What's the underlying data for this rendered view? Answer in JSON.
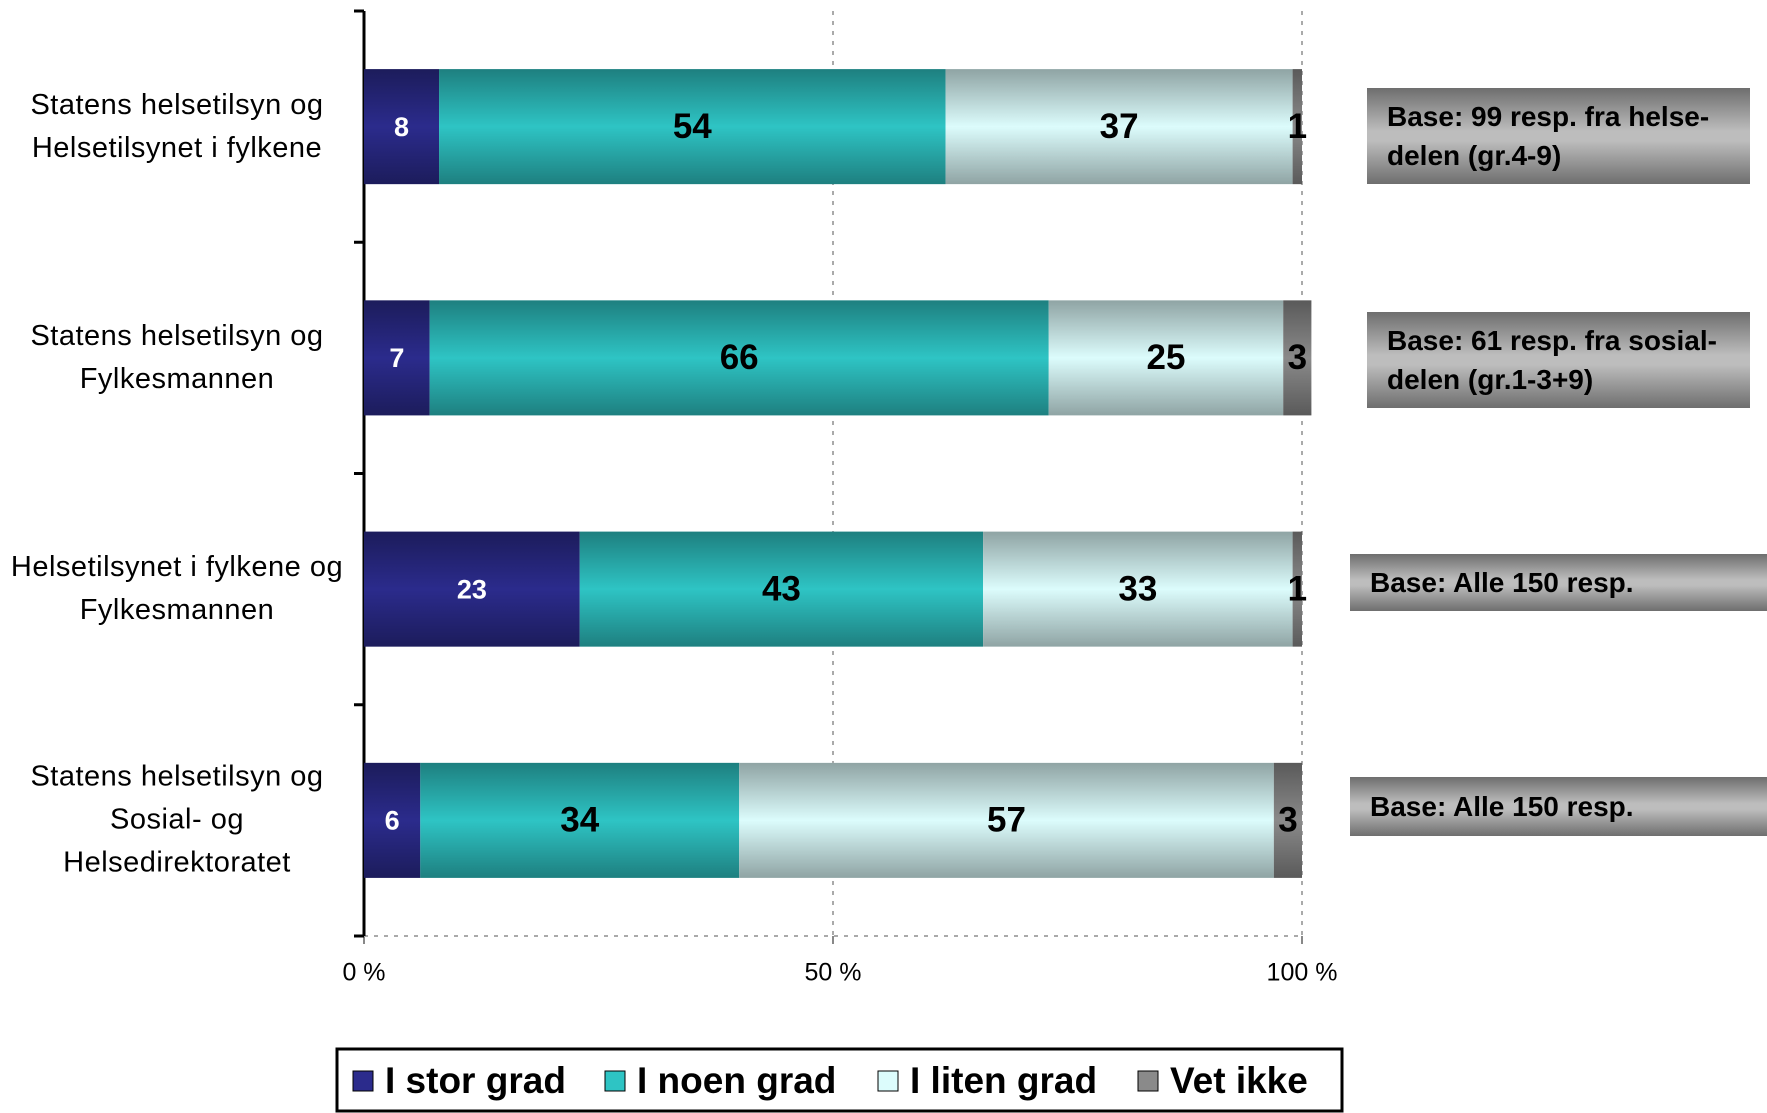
{
  "chart_data": {
    "type": "stacked-bar-horizontal",
    "categories": [
      "Statens helsetilsyn og Helsetilsynet i fylkene",
      "Statens helsetilsyn og Fylkesmannen",
      "Helsetilsynet i fylkene og Fylkesmannen",
      "Statens helsetilsyn og Sosial- og Helsedirektoratet"
    ],
    "series": [
      {
        "name": "I stor grad",
        "color": "#2b2b8c",
        "values": [
          8,
          7,
          23,
          6
        ]
      },
      {
        "name": "I noen grad",
        "color": "#2ec4c4",
        "values": [
          54,
          66,
          43,
          34
        ]
      },
      {
        "name": "I liten grad",
        "color": "#dcfcfc",
        "values": [
          37,
          25,
          33,
          57
        ]
      },
      {
        "name": "Vet ikke",
        "color": "#8a8a8a",
        "values": [
          1,
          3,
          1,
          3
        ]
      }
    ],
    "xlim": [
      0,
      100
    ],
    "xticks": [
      {
        "value": 0,
        "label": "0 %"
      },
      {
        "value": 50,
        "label": "50 %"
      },
      {
        "value": 100,
        "label": "100 %"
      }
    ],
    "grid": true,
    "legend": "bottom",
    "annotations": [
      "Base: 99 resp. fra helse-delen (gr.4-9)",
      "Base: 61 resp. fra sosial-delen (gr.1-3+9)",
      "Base: Alle 150 resp.",
      "Base: Alle 150 resp."
    ]
  }
}
